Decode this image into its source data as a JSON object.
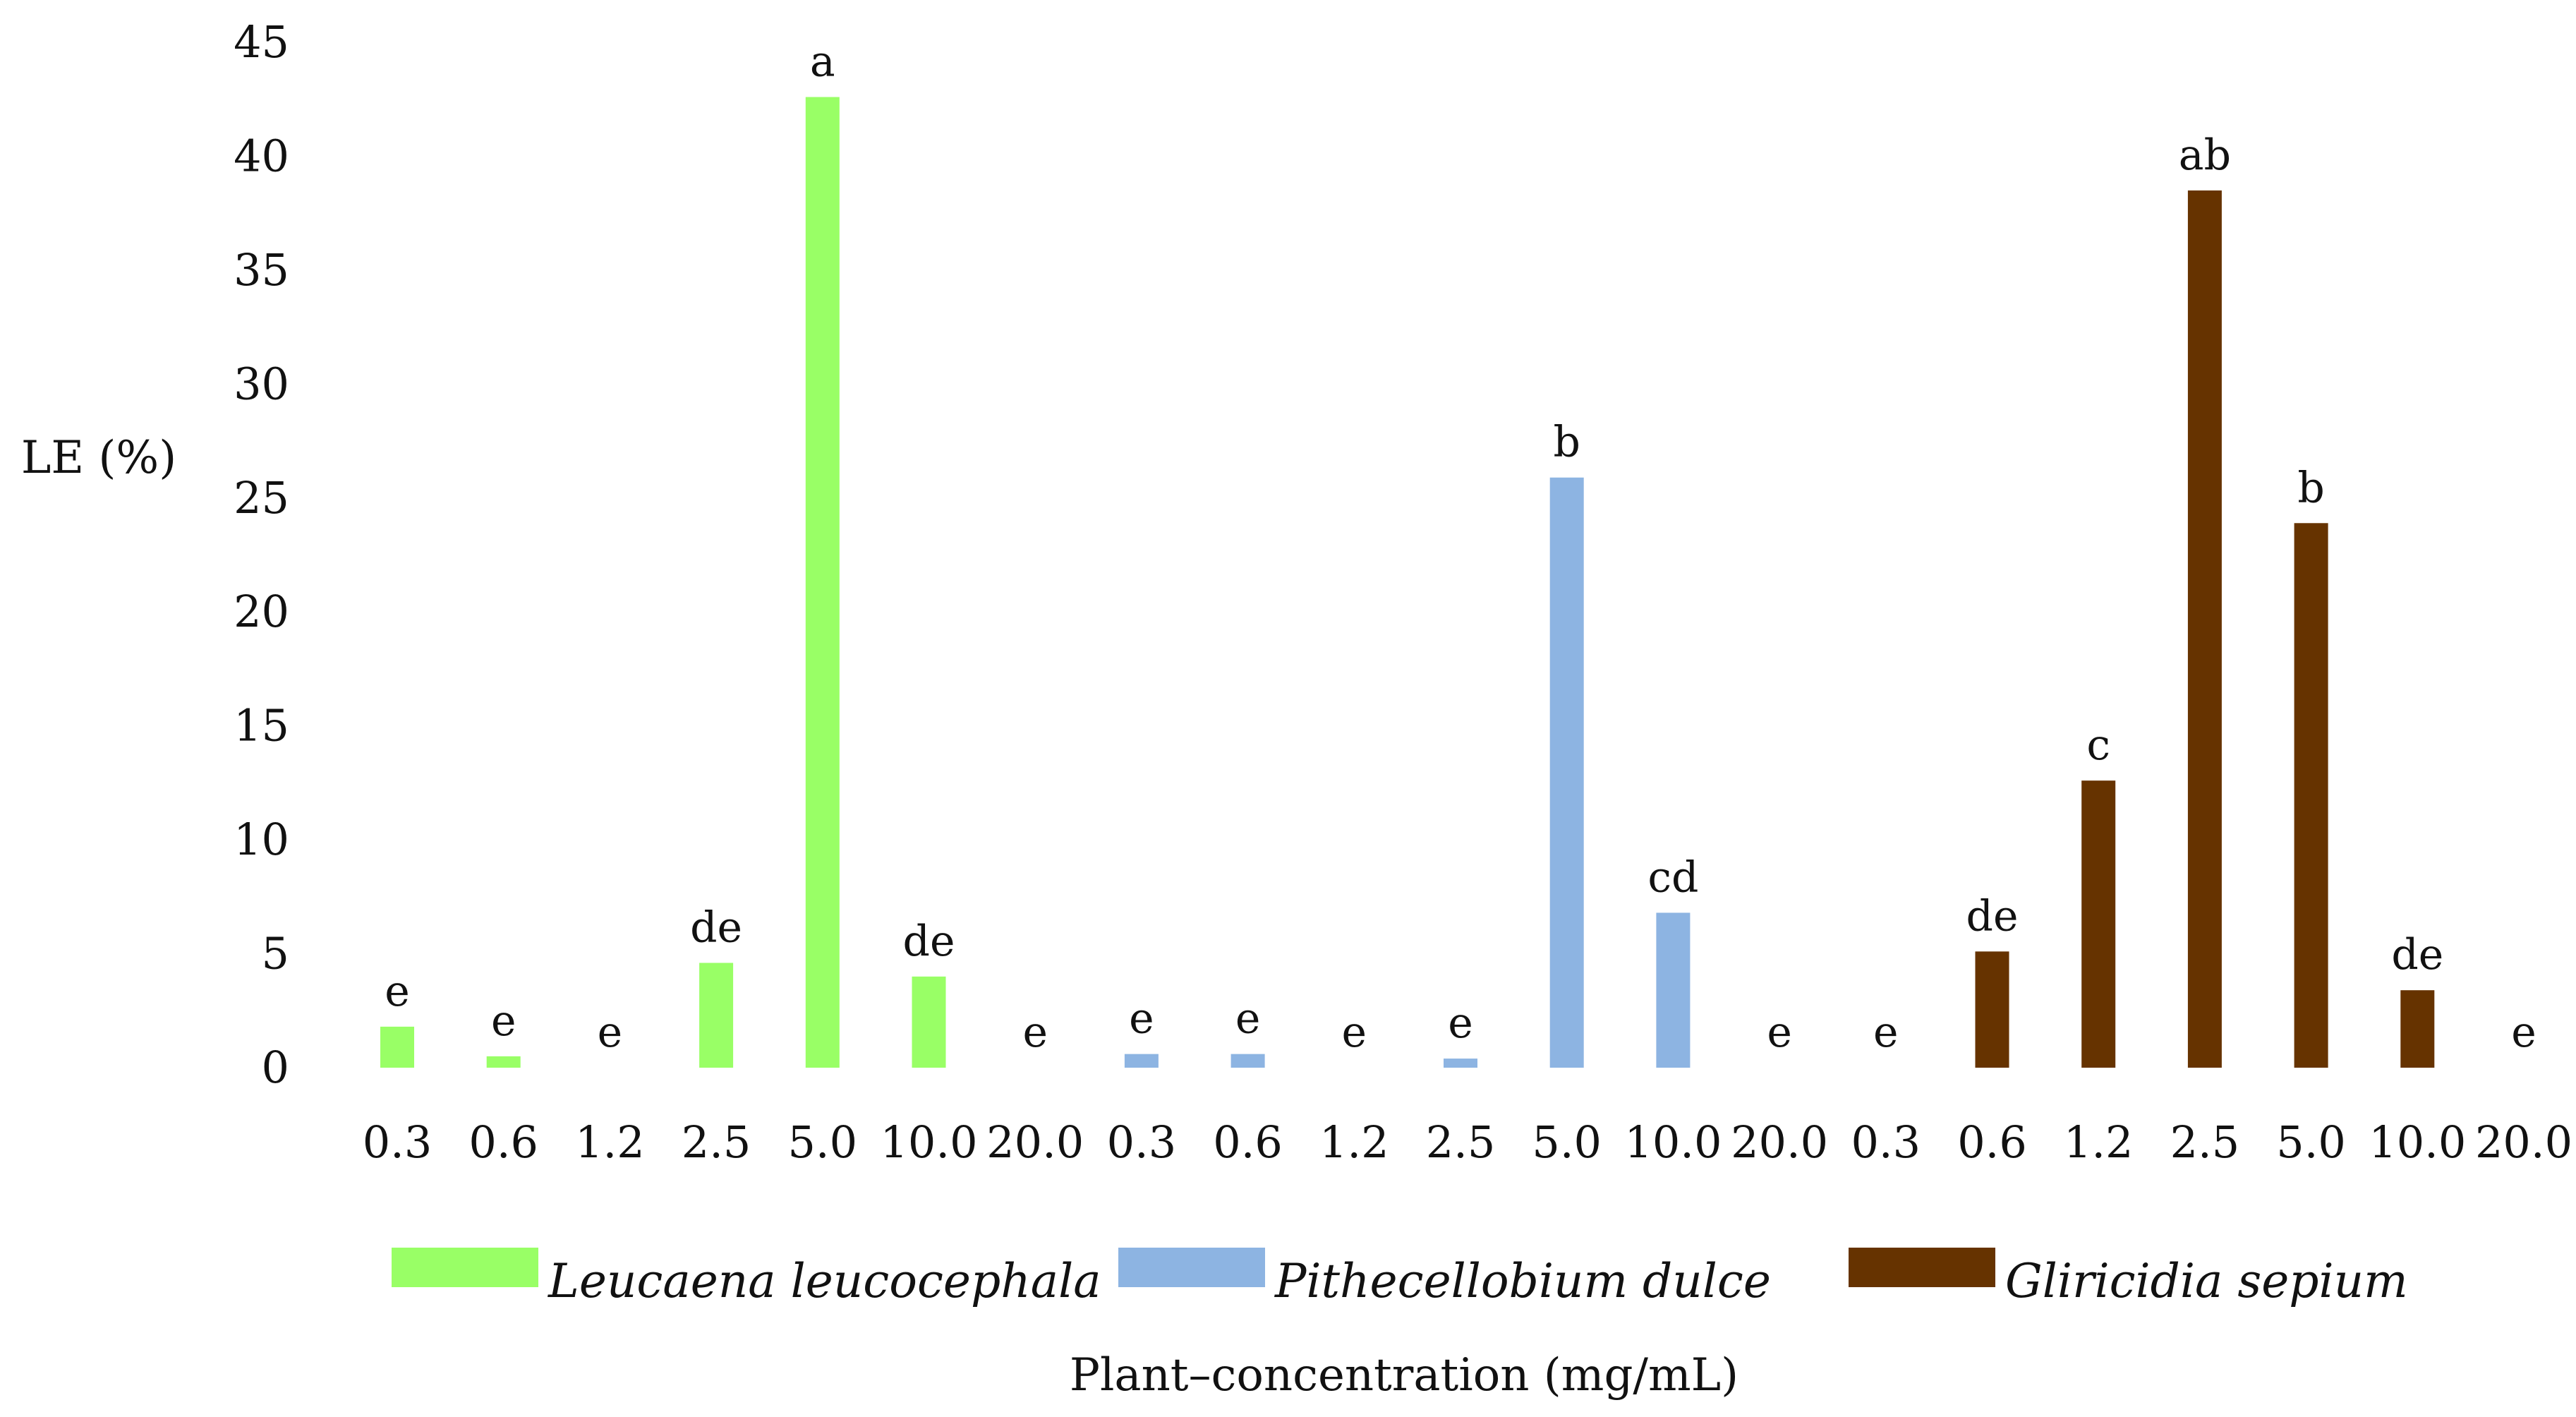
{
  "chart_data": {
    "type": "bar",
    "ylabel": "LE (%)",
    "xlabel": "Plant–concentration (mg/mL)",
    "ylim": [
      0,
      45
    ],
    "yticks": [
      "0",
      "5",
      "10",
      "15",
      "20",
      "25",
      "30",
      "35",
      "40",
      "45"
    ],
    "grid": false,
    "legend_position": "bottom",
    "series": [
      {
        "name": "Leucaena leucocephala",
        "color": "#99ff66",
        "categories": [
          "0.3",
          "0.6",
          "1.2",
          "2.5",
          "5.0",
          "10.0",
          "20.0"
        ],
        "values": [
          1.8,
          0.5,
          0,
          4.6,
          42.6,
          4.0,
          0
        ],
        "labels": [
          "e",
          "e",
          "e",
          "de",
          "a",
          "de",
          "e"
        ]
      },
      {
        "name": "Pithecellobium dulce",
        "color": "#8db4e2",
        "categories": [
          "0.3",
          "0.6",
          "1.2",
          "2.5",
          "5.0",
          "10.0",
          "20.0"
        ],
        "values": [
          0.6,
          0.6,
          0,
          0.4,
          25.9,
          6.8,
          0
        ],
        "labels": [
          "e",
          "e",
          "e",
          "e",
          "b",
          "cd",
          "e"
        ]
      },
      {
        "name": "Gliricidia sepium",
        "color": "#663300",
        "categories": [
          "0.3",
          "0.6",
          "1.2",
          "2.5",
          "5.0",
          "10.0",
          "20.0"
        ],
        "values": [
          0,
          5.1,
          12.6,
          38.5,
          23.9,
          3.4,
          0
        ],
        "labels": [
          "e",
          "de",
          "c",
          "ab",
          "b",
          "de",
          "e"
        ]
      }
    ]
  }
}
